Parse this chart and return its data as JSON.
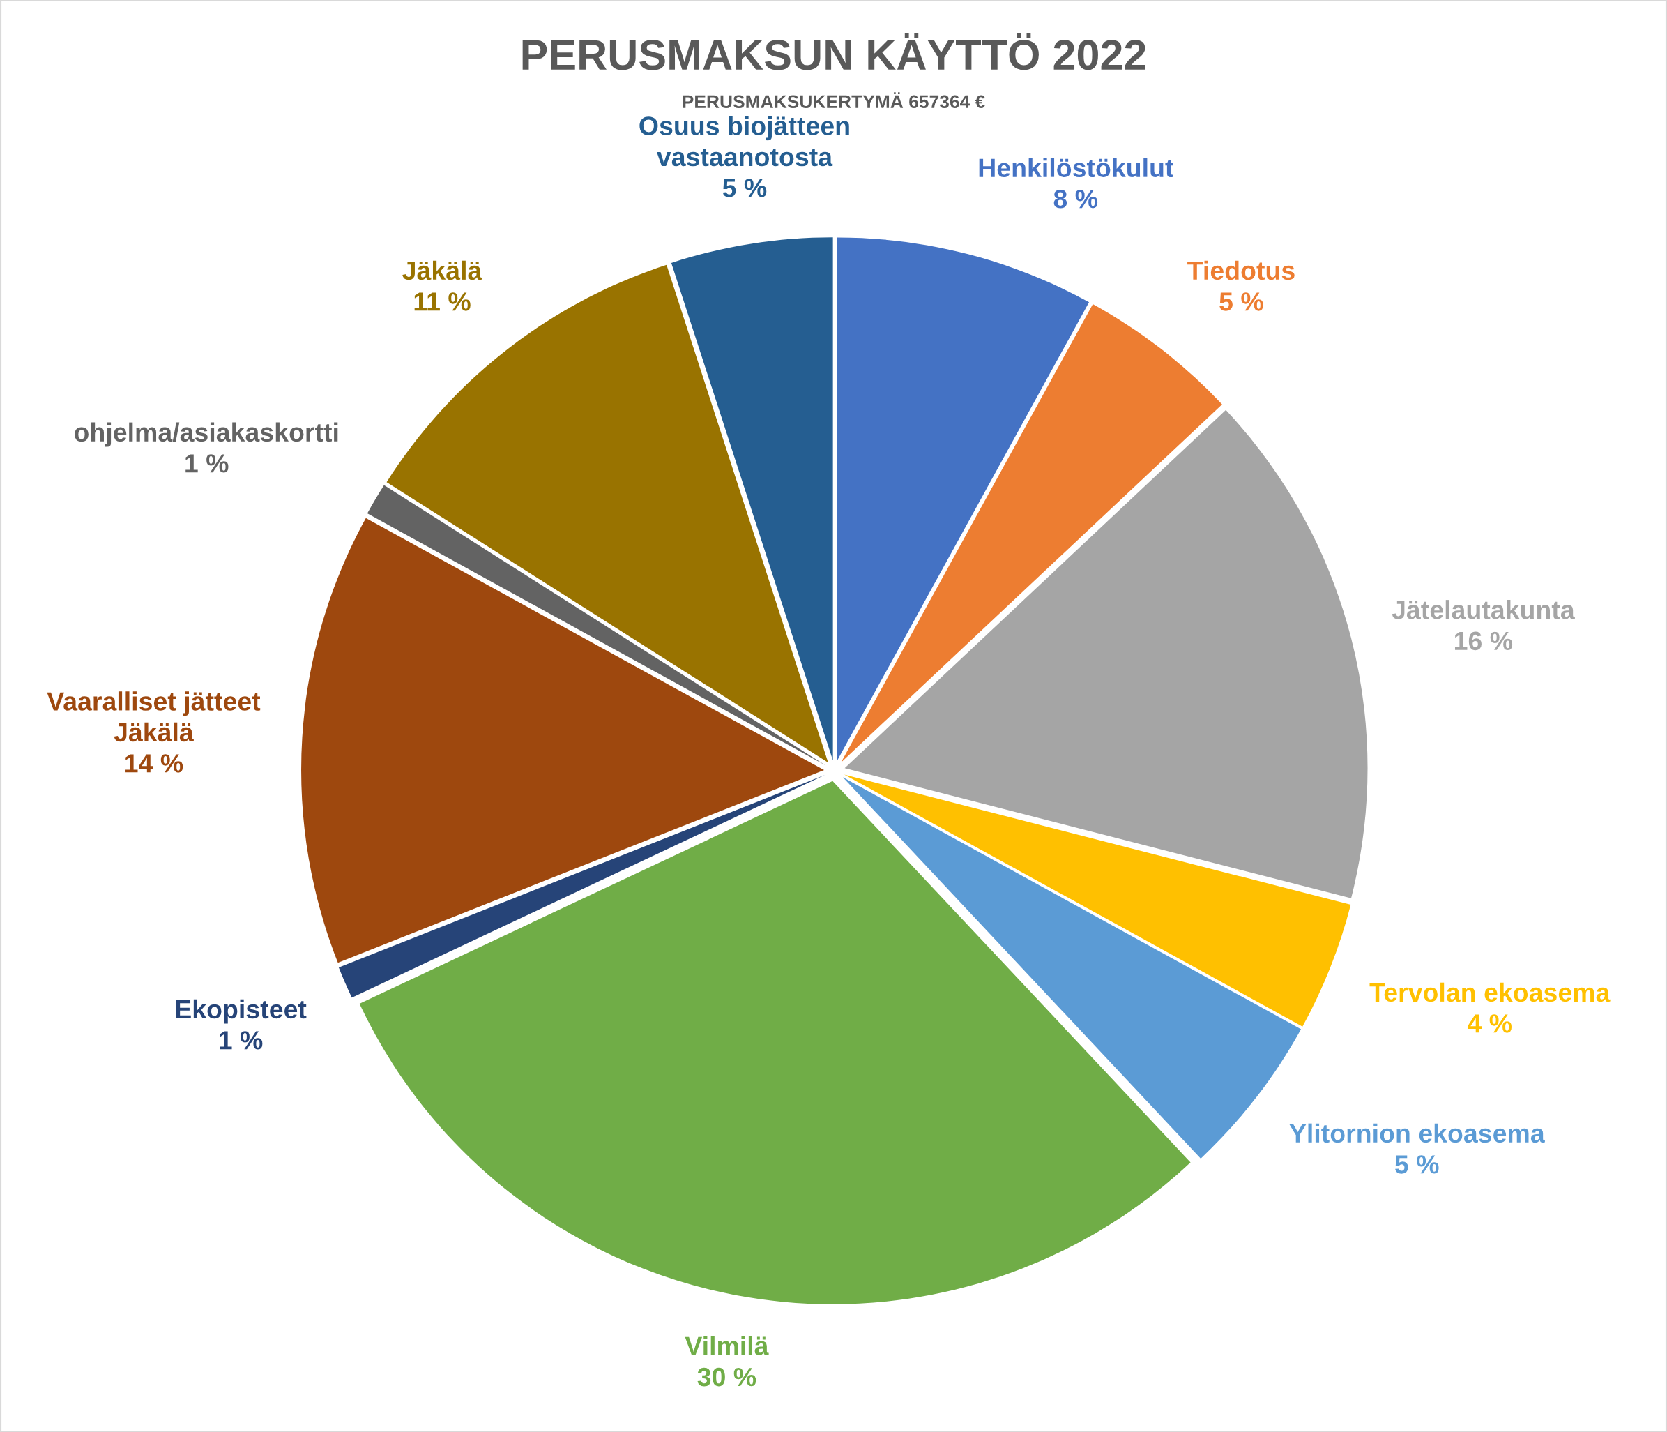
{
  "chart_data": {
    "type": "pie",
    "title": "PERUSMAKSUN KÄYTTÖ 2022",
    "subtitle": "PERUSMAKSUKERTYMÄ 657364 €",
    "categories": [
      "Henkilöstökulut",
      "Tiedotus",
      "Jätelautakunta",
      "Tervolan ekoasema",
      "Ylitornion ekoasema",
      "Vilmilä",
      "Ekopisteet",
      "Vaaralliset jätteet Jäkälä",
      "ohjelma/asiakaskortti",
      "Jäkälä",
      "Osuus biojätteen vastaanotosta"
    ],
    "values": [
      8,
      5,
      16,
      4,
      5,
      30,
      1,
      14,
      1,
      11,
      5
    ],
    "colors": [
      "#4472c4",
      "#ed7d31",
      "#a5a5a5",
      "#ffc000",
      "#5b9bd5",
      "#70ad47",
      "#264478",
      "#9e480e",
      "#636363",
      "#997300",
      "#255e91"
    ],
    "value_labels": [
      "8 %",
      "5 %",
      "16 %",
      "4 %",
      "5 %",
      "30 %",
      "1 %",
      "14 %",
      "1 %",
      "11 %",
      "5 %"
    ]
  }
}
